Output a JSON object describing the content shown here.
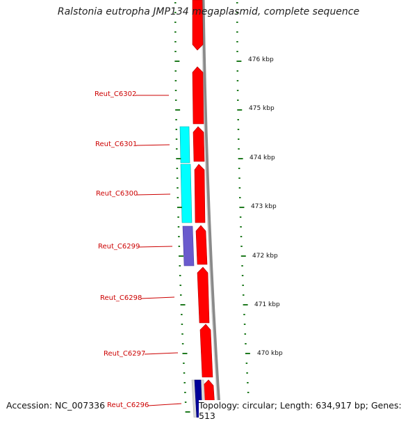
{
  "title": "Ralstonia eutropha JMP134 megaplasmid, complete sequence",
  "footer": {
    "accession": "Accession: NC_007336",
    "topology": "Topology: circular; Length: 634,917 bp; Genes: 513"
  },
  "colors": {
    "forward_strand": "#ff0000",
    "reverse_strand_a": "#00ffff",
    "reverse_strand_b": "#6a5acd",
    "reverse_strand_c": "#000099",
    "backbone": "#8a8a8a",
    "tick": "#1f7a1f",
    "label": "#cc0000"
  },
  "gene_labels": [
    "Reut_C6302",
    "Reut_C6301",
    "Reut_C6300",
    "Reut_C6299",
    "Reut_C6298",
    "Reut_C6297",
    "Reut_C6296"
  ],
  "kbp_labels": [
    "476 kbp",
    "475 kbp",
    "474 kbp",
    "473 kbp",
    "472 kbp",
    "471 kbp",
    "470 kbp"
  ]
}
